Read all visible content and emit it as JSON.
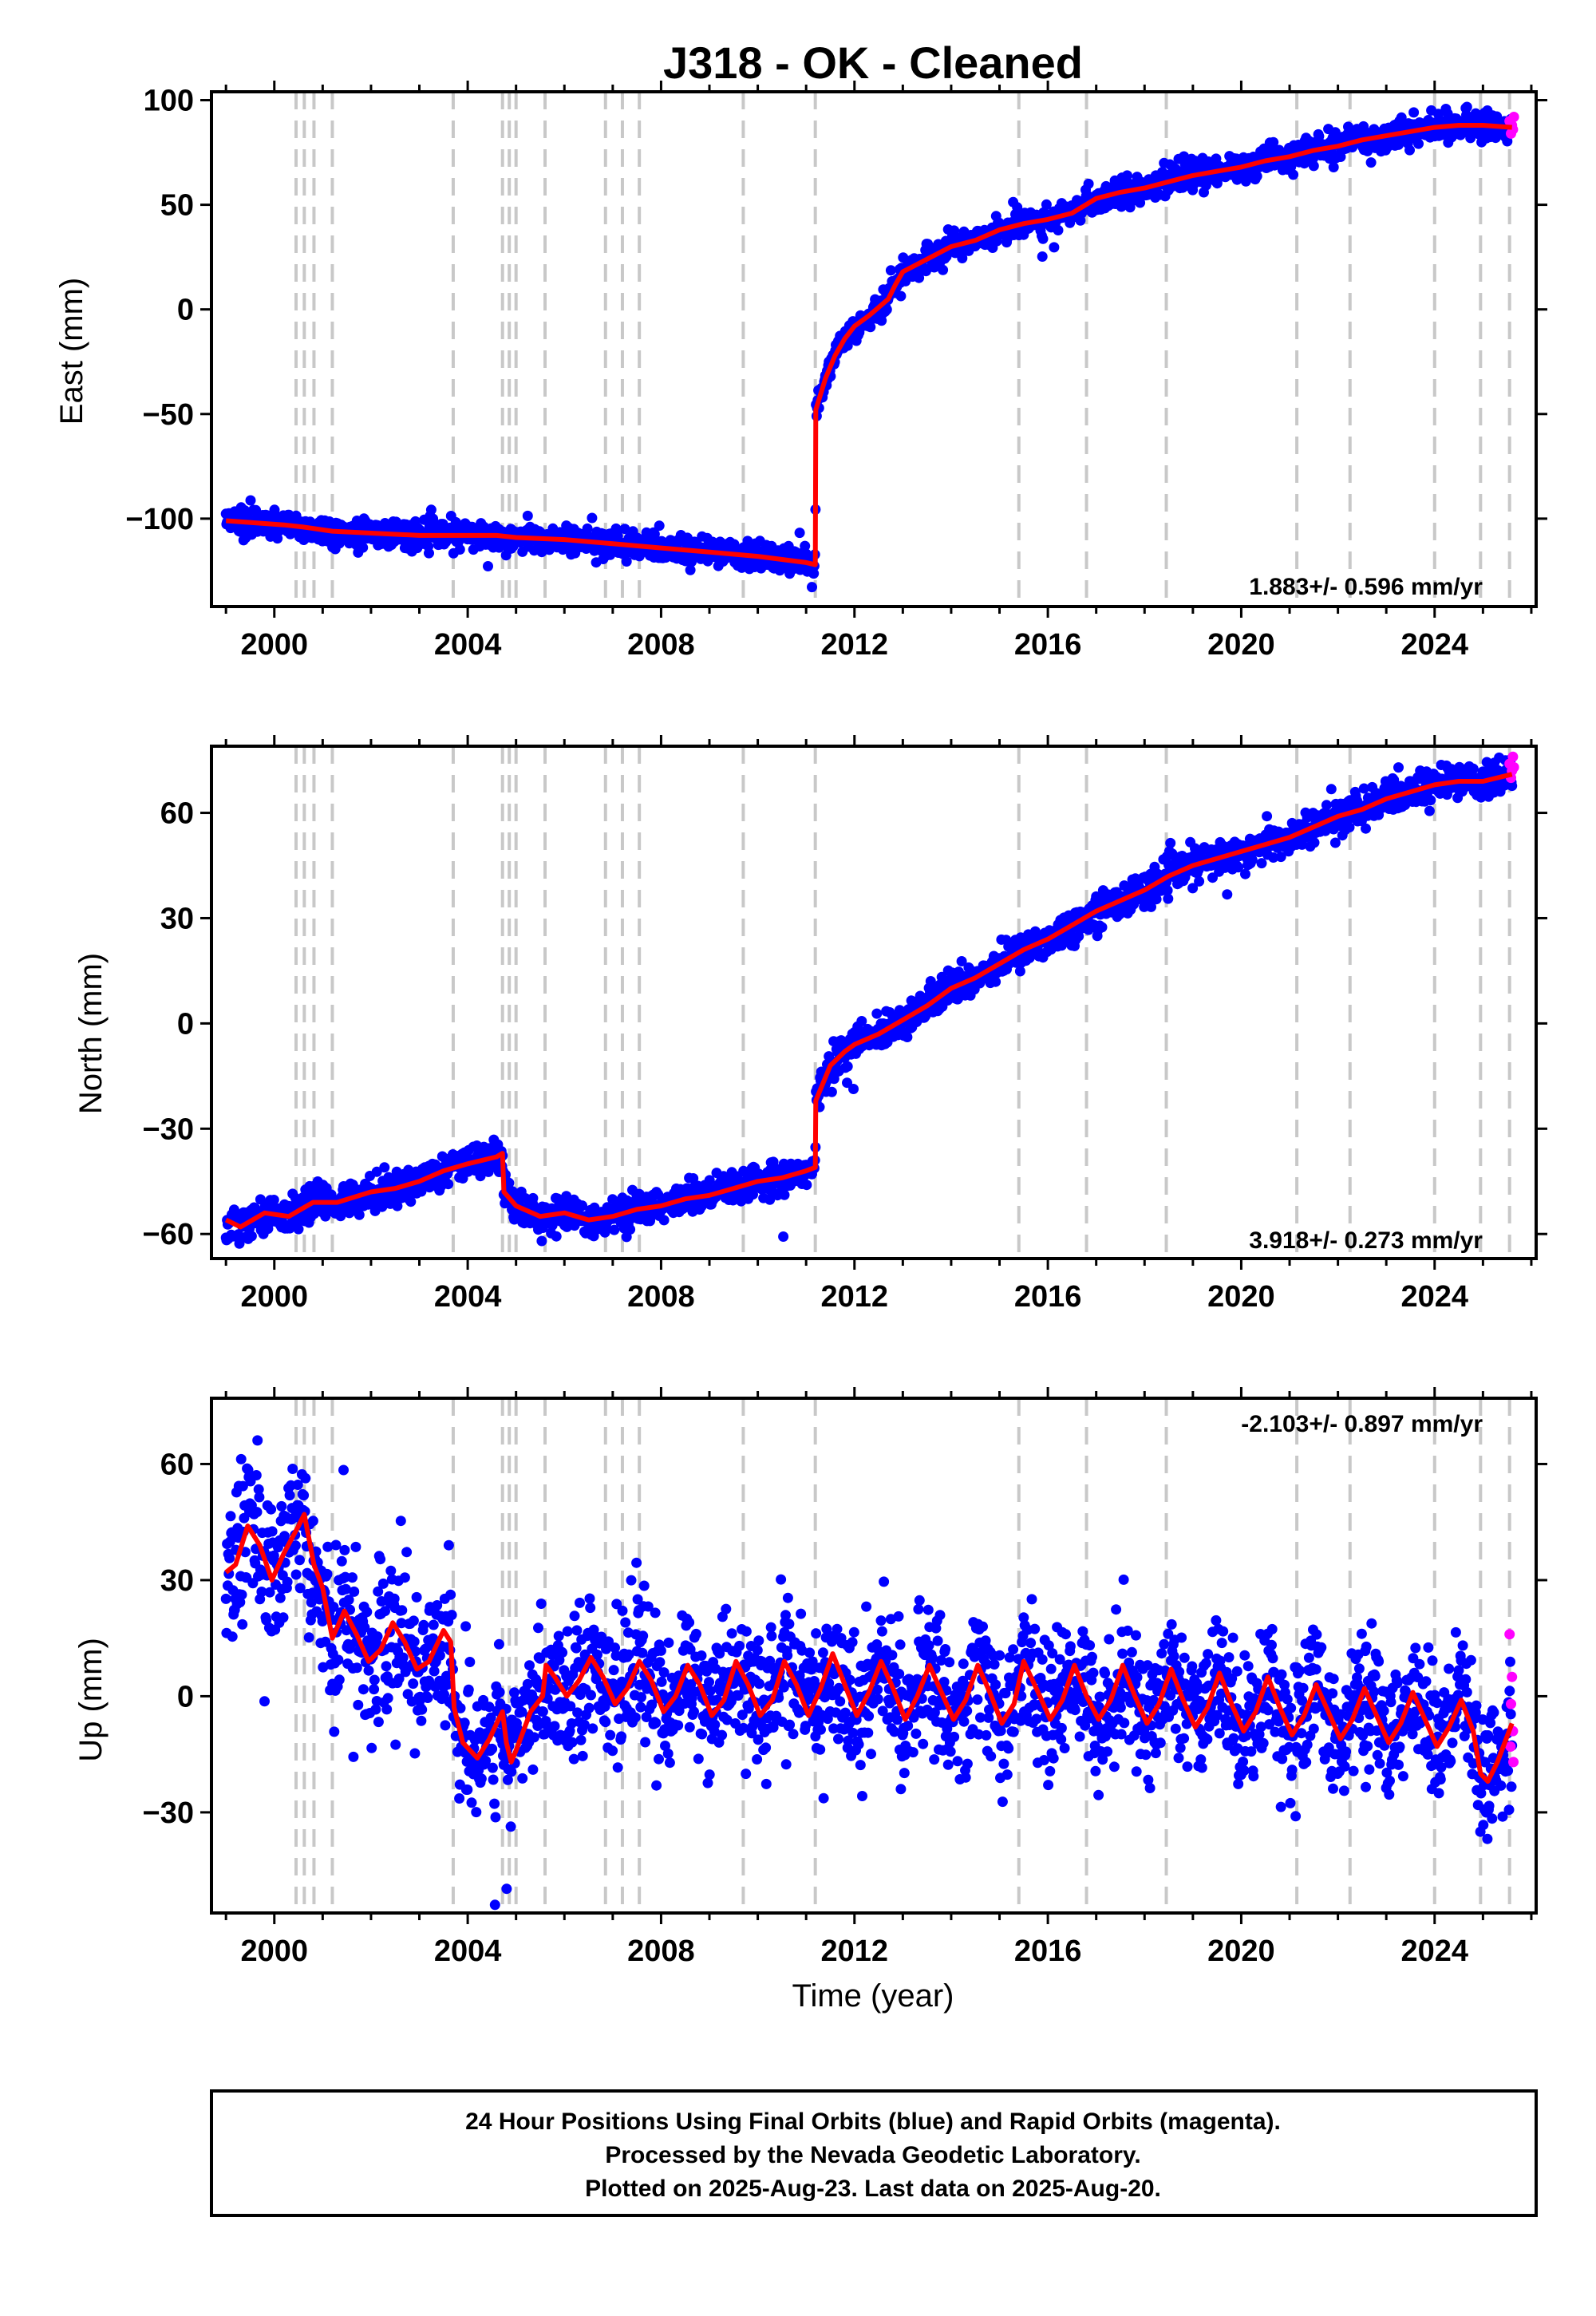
{
  "figure": {
    "title": "J318  - OK - Cleaned",
    "xlabel": "Time (year)",
    "footer": [
      "24 Hour Positions Using Final Orbits (blue) and Rapid Orbits (magenta).",
      "Processed by the Nevada Geodetic Laboratory.",
      "Plotted on 2025-Aug-23. Last data on 2025-Aug-20."
    ]
  },
  "colors": {
    "final_orbits": "#0000ff",
    "rapid_orbits": "#ff00ff",
    "model": "#ff0000",
    "event_lines": "#c8c8c8"
  },
  "chart_data": [
    {
      "type": "scatter",
      "component": "east",
      "ylabel": "East (mm)",
      "rate": "1.883+/- 0.596 mm/yr",
      "rate_position": "bottom-right",
      "xlim": [
        1998.7,
        2026.1
      ],
      "ylim": [
        -142,
        104
      ],
      "xticks": [
        2000,
        2004,
        2008,
        2012,
        2016,
        2020,
        2024
      ],
      "yticks": [
        -100,
        -50,
        0,
        50,
        100
      ],
      "events": [
        2000.45,
        2000.62,
        2000.82,
        2001.2,
        2003.7,
        2004.72,
        2004.86,
        2005.0,
        2005.6,
        2006.85,
        2007.2,
        2007.55,
        2009.7,
        2011.19,
        2015.4,
        2016.8,
        2018.45,
        2021.15,
        2022.25,
        2024.0,
        2024.95,
        2025.55
      ],
      "model": [
        [
          1999.0,
          -101
        ],
        [
          2000.2,
          -103
        ],
        [
          2000.6,
          -104
        ],
        [
          2001.2,
          -106
        ],
        [
          2003.0,
          -108
        ],
        [
          2004.6,
          -108
        ],
        [
          2005.0,
          -109
        ],
        [
          2006.0,
          -110
        ],
        [
          2007.0,
          -112
        ],
        [
          2008.0,
          -114
        ],
        [
          2009.0,
          -116
        ],
        [
          2010.0,
          -118
        ],
        [
          2011.0,
          -121
        ],
        [
          2011.19,
          -122
        ],
        [
          2011.2,
          -48
        ],
        [
          2011.4,
          -33
        ],
        [
          2011.6,
          -22
        ],
        [
          2011.8,
          -14
        ],
        [
          2012.0,
          -8
        ],
        [
          2012.3,
          -3
        ],
        [
          2012.5,
          1
        ],
        [
          2012.7,
          5
        ],
        [
          2012.85,
          12
        ],
        [
          2013.0,
          18
        ],
        [
          2013.5,
          24
        ],
        [
          2014.0,
          30
        ],
        [
          2014.5,
          33
        ],
        [
          2015.0,
          38
        ],
        [
          2015.5,
          41
        ],
        [
          2016.0,
          43
        ],
        [
          2016.5,
          46
        ],
        [
          2017.0,
          53
        ],
        [
          2017.5,
          56
        ],
        [
          2018.0,
          58
        ],
        [
          2018.5,
          61
        ],
        [
          2019.0,
          64
        ],
        [
          2019.5,
          66
        ],
        [
          2020.0,
          68
        ],
        [
          2020.5,
          71
        ],
        [
          2021.0,
          73
        ],
        [
          2021.5,
          76
        ],
        [
          2022.0,
          78
        ],
        [
          2022.5,
          81
        ],
        [
          2023.0,
          83
        ],
        [
          2023.5,
          85
        ],
        [
          2024.0,
          87
        ],
        [
          2024.5,
          88
        ],
        [
          2025.0,
          88
        ],
        [
          2025.6,
          87
        ]
      ],
      "scatter_sd": 3.2,
      "rapid": [
        [
          2025.55,
          90
        ],
        [
          2025.6,
          88
        ],
        [
          2025.62,
          86
        ],
        [
          2025.58,
          84
        ],
        [
          2025.64,
          92
        ]
      ]
    },
    {
      "type": "scatter",
      "component": "north",
      "ylabel": "North (mm)",
      "rate": "3.918+/- 0.273 mm/yr",
      "rate_position": "bottom-right",
      "xlim": [
        1998.7,
        2026.1
      ],
      "ylim": [
        -67,
        79
      ],
      "xticks": [
        2000,
        2004,
        2008,
        2012,
        2016,
        2020,
        2024
      ],
      "yticks": [
        -60,
        -30,
        0,
        30,
        60
      ],
      "events": [
        2000.45,
        2000.62,
        2000.82,
        2001.2,
        2003.7,
        2004.72,
        2004.86,
        2005.0,
        2005.6,
        2006.85,
        2007.2,
        2007.55,
        2009.7,
        2011.19,
        2015.4,
        2016.8,
        2018.45,
        2021.15,
        2022.25,
        2024.0,
        2024.95,
        2025.55
      ],
      "model": [
        [
          1999.0,
          -56
        ],
        [
          1999.3,
          -58
        ],
        [
          1999.8,
          -54
        ],
        [
          2000.3,
          -55
        ],
        [
          2000.8,
          -51
        ],
        [
          2001.3,
          -51
        ],
        [
          2002.0,
          -48
        ],
        [
          2002.5,
          -47
        ],
        [
          2003.0,
          -45
        ],
        [
          2003.5,
          -42
        ],
        [
          2004.0,
          -40
        ],
        [
          2004.6,
          -38
        ],
        [
          2004.72,
          -37
        ],
        [
          2004.75,
          -48
        ],
        [
          2005.0,
          -52
        ],
        [
          2005.5,
          -55
        ],
        [
          2006.0,
          -54
        ],
        [
          2006.5,
          -56
        ],
        [
          2007.0,
          -55
        ],
        [
          2007.5,
          -53
        ],
        [
          2008.0,
          -52
        ],
        [
          2008.5,
          -50
        ],
        [
          2009.0,
          -49
        ],
        [
          2009.5,
          -47
        ],
        [
          2010.0,
          -45
        ],
        [
          2010.5,
          -44
        ],
        [
          2011.0,
          -42
        ],
        [
          2011.19,
          -41
        ],
        [
          2011.2,
          -22
        ],
        [
          2011.5,
          -12
        ],
        [
          2011.8,
          -8
        ],
        [
          2012.0,
          -6
        ],
        [
          2012.5,
          -3
        ],
        [
          2013.0,
          1
        ],
        [
          2013.5,
          5
        ],
        [
          2014.0,
          10
        ],
        [
          2014.5,
          13
        ],
        [
          2015.0,
          17
        ],
        [
          2015.5,
          21
        ],
        [
          2016.0,
          24
        ],
        [
          2016.5,
          28
        ],
        [
          2017.0,
          32
        ],
        [
          2017.5,
          35
        ],
        [
          2018.0,
          38
        ],
        [
          2018.5,
          42
        ],
        [
          2019.0,
          45
        ],
        [
          2019.5,
          47
        ],
        [
          2020.0,
          49
        ],
        [
          2020.5,
          51
        ],
        [
          2021.0,
          53
        ],
        [
          2021.5,
          56
        ],
        [
          2022.0,
          59
        ],
        [
          2022.5,
          61
        ],
        [
          2023.0,
          64
        ],
        [
          2023.5,
          66
        ],
        [
          2024.0,
          68
        ],
        [
          2024.5,
          69
        ],
        [
          2025.0,
          69
        ],
        [
          2025.6,
          71
        ]
      ],
      "scatter_sd": 2.4,
      "rapid": [
        [
          2025.55,
          74
        ],
        [
          2025.6,
          72
        ],
        [
          2025.62,
          76
        ],
        [
          2025.58,
          70
        ],
        [
          2025.64,
          73
        ]
      ]
    },
    {
      "type": "scatter",
      "component": "up",
      "ylabel": "Up (mm)",
      "rate": "-2.103+/- 0.897 mm/yr",
      "rate_position": "top-right",
      "xlim": [
        1998.7,
        2026.1
      ],
      "ylim": [
        -56,
        77
      ],
      "xticks": [
        2000,
        2004,
        2008,
        2012,
        2016,
        2020,
        2024
      ],
      "yticks": [
        -30,
        0,
        30,
        60
      ],
      "events": [
        2000.45,
        2000.62,
        2000.82,
        2001.2,
        2003.7,
        2004.72,
        2004.86,
        2005.0,
        2005.6,
        2006.85,
        2007.2,
        2007.55,
        2009.7,
        2011.19,
        2015.4,
        2016.8,
        2018.45,
        2021.15,
        2022.25,
        2024.0,
        2024.95,
        2025.55
      ],
      "model": [
        [
          1999.0,
          32
        ],
        [
          1999.2,
          34
        ],
        [
          1999.45,
          44
        ],
        [
          1999.7,
          39
        ],
        [
          1999.95,
          30
        ],
        [
          2000.2,
          37
        ],
        [
          2000.5,
          44
        ],
        [
          2000.62,
          47
        ],
        [
          2000.82,
          34
        ],
        [
          2001.0,
          28
        ],
        [
          2001.2,
          15
        ],
        [
          2001.45,
          22
        ],
        [
          2001.7,
          16
        ],
        [
          2001.95,
          9
        ],
        [
          2002.2,
          12
        ],
        [
          2002.45,
          19
        ],
        [
          2002.7,
          14
        ],
        [
          2002.95,
          7
        ],
        [
          2003.2,
          9
        ],
        [
          2003.5,
          17
        ],
        [
          2003.65,
          14
        ],
        [
          2003.72,
          -3
        ],
        [
          2003.9,
          -12
        ],
        [
          2004.2,
          -16
        ],
        [
          2004.45,
          -11
        ],
        [
          2004.6,
          -7
        ],
        [
          2004.72,
          -4
        ],
        [
          2004.8,
          -12
        ],
        [
          2004.9,
          -17
        ],
        [
          2005.0,
          -14
        ],
        [
          2005.3,
          -4
        ],
        [
          2005.55,
          0
        ],
        [
          2005.62,
          8
        ],
        [
          2005.8,
          5
        ],
        [
          2006.05,
          0
        ],
        [
          2006.3,
          4
        ],
        [
          2006.55,
          10
        ],
        [
          2006.8,
          5
        ],
        [
          2007.05,
          -2
        ],
        [
          2007.3,
          2
        ],
        [
          2007.55,
          9
        ],
        [
          2007.8,
          4
        ],
        [
          2008.05,
          -4
        ],
        [
          2008.3,
          0
        ],
        [
          2008.55,
          8
        ],
        [
          2008.8,
          3
        ],
        [
          2009.05,
          -5
        ],
        [
          2009.3,
          -1
        ],
        [
          2009.55,
          9
        ],
        [
          2009.8,
          3
        ],
        [
          2010.05,
          -5
        ],
        [
          2010.3,
          -1
        ],
        [
          2010.55,
          9
        ],
        [
          2010.8,
          3
        ],
        [
          2011.05,
          -5
        ],
        [
          2011.3,
          2
        ],
        [
          2011.55,
          11
        ],
        [
          2011.8,
          3
        ],
        [
          2012.05,
          -5
        ],
        [
          2012.3,
          1
        ],
        [
          2012.55,
          9
        ],
        [
          2012.8,
          2
        ],
        [
          2013.05,
          -6
        ],
        [
          2013.3,
          0
        ],
        [
          2013.55,
          8
        ],
        [
          2013.8,
          1
        ],
        [
          2014.05,
          -6
        ],
        [
          2014.3,
          -1
        ],
        [
          2014.55,
          8
        ],
        [
          2014.8,
          1
        ],
        [
          2015.05,
          -7
        ],
        [
          2015.3,
          -2
        ],
        [
          2015.5,
          9
        ],
        [
          2015.8,
          1
        ],
        [
          2016.05,
          -6
        ],
        [
          2016.3,
          -1
        ],
        [
          2016.55,
          8
        ],
        [
          2016.8,
          0
        ],
        [
          2017.05,
          -6
        ],
        [
          2017.3,
          -1
        ],
        [
          2017.55,
          8
        ],
        [
          2017.8,
          0
        ],
        [
          2018.05,
          -7
        ],
        [
          2018.3,
          -2
        ],
        [
          2018.55,
          7
        ],
        [
          2018.8,
          -1
        ],
        [
          2019.05,
          -8
        ],
        [
          2019.3,
          -3
        ],
        [
          2019.55,
          6
        ],
        [
          2019.8,
          -2
        ],
        [
          2020.05,
          -9
        ],
        [
          2020.3,
          -4
        ],
        [
          2020.55,
          5
        ],
        [
          2020.8,
          -3
        ],
        [
          2021.05,
          -10
        ],
        [
          2021.3,
          -5
        ],
        [
          2021.55,
          3
        ],
        [
          2021.8,
          -4
        ],
        [
          2022.05,
          -11
        ],
        [
          2022.3,
          -6
        ],
        [
          2022.55,
          2
        ],
        [
          2022.8,
          -5
        ],
        [
          2023.05,
          -12
        ],
        [
          2023.3,
          -7
        ],
        [
          2023.55,
          1
        ],
        [
          2023.8,
          -6
        ],
        [
          2024.05,
          -13
        ],
        [
          2024.3,
          -8
        ],
        [
          2024.55,
          -1
        ],
        [
          2024.8,
          -9
        ],
        [
          2024.95,
          -20
        ],
        [
          2025.1,
          -22
        ],
        [
          2025.3,
          -17
        ],
        [
          2025.6,
          -7
        ]
      ],
      "scatter_sd": 8.5,
      "rapid": [
        [
          2025.55,
          16
        ],
        [
          2025.6,
          5
        ],
        [
          2025.58,
          -2
        ],
        [
          2025.62,
          -9
        ],
        [
          2025.57,
          -13
        ],
        [
          2025.63,
          -17
        ]
      ]
    }
  ]
}
